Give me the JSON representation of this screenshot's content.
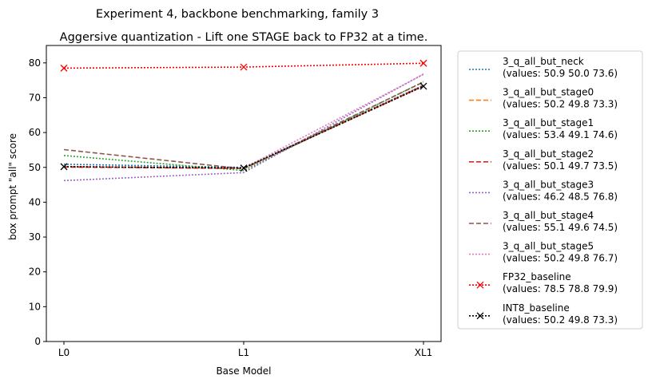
{
  "chart_data": {
    "type": "line",
    "suptitle": "Experiment 4, backbone benchmarking, family 3",
    "title": "Aggersive quantization - Lift one STAGE back to FP32 at a time.",
    "xlabel": "Base Model",
    "ylabel": "box prompt \"all\" score",
    "categories": [
      "L0",
      "L1",
      "XL1"
    ],
    "ylim": [
      0,
      85
    ],
    "yticks": [
      0,
      10,
      20,
      30,
      40,
      50,
      60,
      70,
      80
    ],
    "grid": false,
    "legend_position": "outside-right",
    "series": [
      {
        "name": "3_q_all_but_neck",
        "values_label": "(values: 50.9 50.0 73.6)",
        "values": [
          50.9,
          50.0,
          73.6
        ],
        "color": "#1f77b4",
        "dash": "dotted",
        "marker": ""
      },
      {
        "name": "3_q_all_but_stage0",
        "values_label": "(values: 50.2 49.8 73.3)",
        "values": [
          50.2,
          49.8,
          73.3
        ],
        "color": "#ff7f0e",
        "dash": "dashed",
        "marker": ""
      },
      {
        "name": "3_q_all_but_stage1",
        "values_label": "(values: 53.4 49.1 74.6)",
        "values": [
          53.4,
          49.1,
          74.6
        ],
        "color": "#2ca02c",
        "dash": "dotted",
        "marker": ""
      },
      {
        "name": "3_q_all_but_stage2",
        "values_label": "(values: 50.1 49.7 73.5)",
        "values": [
          50.1,
          49.7,
          73.5
        ],
        "color": "#d62728",
        "dash": "dashed",
        "marker": ""
      },
      {
        "name": "3_q_all_but_stage3",
        "values_label": "(values: 46.2 48.5 76.8)",
        "values": [
          46.2,
          48.5,
          76.8
        ],
        "color": "#9467bd",
        "dash": "dotted",
        "marker": ""
      },
      {
        "name": "3_q_all_but_stage4",
        "values_label": "(values: 55.1 49.6 74.5)",
        "values": [
          55.1,
          49.6,
          74.5
        ],
        "color": "#8c564b",
        "dash": "dashed",
        "marker": ""
      },
      {
        "name": "3_q_all_but_stage5",
        "values_label": "(values: 50.2 49.8 76.7)",
        "values": [
          50.2,
          49.8,
          76.7
        ],
        "color": "#e377c2",
        "dash": "dotted",
        "marker": ""
      },
      {
        "name": "FP32_baseline",
        "values_label": "(values: 78.5 78.8 79.9)",
        "values": [
          78.5,
          78.8,
          79.9
        ],
        "color": "#ff0000",
        "dash": "dotted",
        "marker": "x"
      },
      {
        "name": "INT8_baseline",
        "values_label": "(values: 50.2 49.8 73.3)",
        "values": [
          50.2,
          49.8,
          73.3
        ],
        "color": "#000000",
        "dash": "dotted",
        "marker": "x"
      }
    ]
  }
}
